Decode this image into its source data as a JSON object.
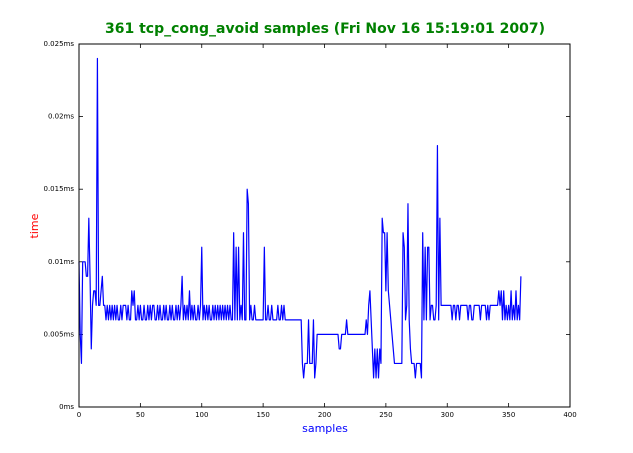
{
  "chart_data": {
    "type": "line",
    "title": "361 tcp_cong_avoid samples (Fri Nov 16 15:19:01 2007)",
    "xlabel": "samples",
    "ylabel": "time",
    "color": "#0000ff",
    "xlim": [
      0,
      400
    ],
    "xticks": [
      0,
      50,
      100,
      150,
      200,
      250,
      300,
      350,
      400
    ],
    "ylim": [
      0,
      0.025
    ],
    "yticks": [
      {
        "value": 0,
        "label": "0ms"
      },
      {
        "value": 0.005,
        "label": "0.005ms"
      },
      {
        "value": 0.01,
        "label": "0.01ms"
      },
      {
        "value": 0.015,
        "label": "0.015ms"
      },
      {
        "value": 0.02,
        "label": "0.02ms"
      },
      {
        "value": 0.025,
        "label": "0.025ms"
      }
    ],
    "x": [
      0,
      1,
      2,
      3,
      4,
      5,
      6,
      7,
      8,
      9,
      10,
      11,
      12,
      13,
      14,
      15,
      16,
      17,
      18,
      19,
      20,
      21,
      22,
      23,
      24,
      25,
      26,
      27,
      28,
      29,
      30,
      31,
      32,
      33,
      34,
      35,
      36,
      37,
      38,
      39,
      40,
      41,
      42,
      43,
      44,
      45,
      46,
      47,
      48,
      49,
      50,
      51,
      52,
      53,
      54,
      55,
      56,
      57,
      58,
      59,
      60,
      61,
      62,
      63,
      64,
      65,
      66,
      67,
      68,
      69,
      70,
      71,
      72,
      73,
      74,
      75,
      76,
      77,
      78,
      79,
      80,
      81,
      82,
      83,
      84,
      85,
      86,
      87,
      88,
      89,
      90,
      91,
      92,
      93,
      94,
      95,
      96,
      97,
      98,
      99,
      100,
      101,
      102,
      103,
      104,
      105,
      106,
      107,
      108,
      109,
      110,
      111,
      112,
      113,
      114,
      115,
      116,
      117,
      118,
      119,
      120,
      121,
      122,
      123,
      124,
      125,
      126,
      127,
      128,
      129,
      130,
      131,
      132,
      133,
      134,
      135,
      136,
      137,
      138,
      139,
      140,
      141,
      142,
      143,
      144,
      145,
      146,
      147,
      148,
      149,
      150,
      151,
      152,
      153,
      154,
      155,
      156,
      157,
      158,
      159,
      160,
      161,
      162,
      163,
      164,
      165,
      166,
      167,
      168,
      169,
      170,
      171,
      172,
      173,
      174,
      175,
      176,
      177,
      178,
      179,
      180,
      181,
      182,
      183,
      184,
      185,
      186,
      187,
      188,
      189,
      190,
      191,
      192,
      193,
      194,
      195,
      196,
      197,
      198,
      199,
      200,
      201,
      202,
      203,
      204,
      205,
      206,
      207,
      208,
      209,
      210,
      211,
      212,
      213,
      214,
      215,
      216,
      217,
      218,
      219,
      220,
      221,
      222,
      223,
      224,
      225,
      226,
      227,
      228,
      229,
      230,
      231,
      232,
      233,
      234,
      235,
      236,
      237,
      238,
      239,
      240,
      241,
      242,
      243,
      244,
      245,
      246,
      247,
      248,
      249,
      250,
      251,
      252,
      253,
      254,
      255,
      256,
      257,
      258,
      259,
      260,
      261,
      262,
      263,
      264,
      265,
      266,
      267,
      268,
      269,
      270,
      271,
      272,
      273,
      274,
      275,
      276,
      277,
      278,
      279,
      280,
      281,
      282,
      283,
      284,
      285,
      286,
      287,
      288,
      289,
      290,
      291,
      292,
      293,
      294,
      295,
      296,
      297,
      298,
      299,
      300,
      301,
      302,
      303,
      304,
      305,
      306,
      307,
      308,
      309,
      310,
      311,
      312,
      313,
      314,
      315,
      316,
      317,
      318,
      319,
      320,
      321,
      322,
      323,
      324,
      325,
      326,
      327,
      328,
      329,
      330,
      331,
      332,
      333,
      334,
      335,
      336,
      337,
      338,
      339,
      340,
      341,
      342,
      343,
      344,
      345,
      346,
      347,
      348,
      349,
      350,
      351,
      352,
      353,
      354,
      355,
      356,
      357,
      358,
      359,
      360
    ],
    "values": [
      0.01,
      0.005,
      0.003,
      0.01,
      0.01,
      0.01,
      0.009,
      0.009,
      0.013,
      0.009,
      0.004,
      0.007,
      0.008,
      0.008,
      0.007,
      0.024,
      0.007,
      0.007,
      0.008,
      0.009,
      0.007,
      0.007,
      0.006,
      0.007,
      0.006,
      0.007,
      0.006,
      0.007,
      0.006,
      0.007,
      0.006,
      0.007,
      0.006,
      0.006,
      0.007,
      0.006,
      0.007,
      0.007,
      0.007,
      0.006,
      0.007,
      0.006,
      0.006,
      0.008,
      0.007,
      0.008,
      0.006,
      0.006,
      0.007,
      0.006,
      0.007,
      0.006,
      0.006,
      0.007,
      0.006,
      0.006,
      0.007,
      0.006,
      0.007,
      0.006,
      0.007,
      0.007,
      0.006,
      0.006,
      0.007,
      0.006,
      0.007,
      0.006,
      0.006,
      0.007,
      0.006,
      0.007,
      0.006,
      0.006,
      0.007,
      0.006,
      0.007,
      0.006,
      0.006,
      0.007,
      0.006,
      0.007,
      0.006,
      0.007,
      0.009,
      0.006,
      0.007,
      0.006,
      0.007,
      0.006,
      0.008,
      0.006,
      0.007,
      0.006,
      0.007,
      0.006,
      0.006,
      0.007,
      0.006,
      0.007,
      0.011,
      0.006,
      0.007,
      0.006,
      0.007,
      0.006,
      0.007,
      0.006,
      0.006,
      0.007,
      0.006,
      0.007,
      0.006,
      0.007,
      0.006,
      0.007,
      0.006,
      0.007,
      0.006,
      0.007,
      0.006,
      0.007,
      0.006,
      0.007,
      0.006,
      0.006,
      0.012,
      0.006,
      0.011,
      0.006,
      0.011,
      0.006,
      0.007,
      0.006,
      0.012,
      0.006,
      0.006,
      0.015,
      0.014,
      0.006,
      0.007,
      0.006,
      0.006,
      0.007,
      0.006,
      0.006,
      0.006,
      0.006,
      0.006,
      0.006,
      0.006,
      0.011,
      0.006,
      0.006,
      0.007,
      0.006,
      0.006,
      0.007,
      0.006,
      0.006,
      0.006,
      0.006,
      0.007,
      0.006,
      0.006,
      0.007,
      0.006,
      0.007,
      0.006,
      0.006,
      0.006,
      0.006,
      0.006,
      0.006,
      0.006,
      0.006,
      0.006,
      0.006,
      0.006,
      0.006,
      0.006,
      0.006,
      0.003,
      0.002,
      0.003,
      0.003,
      0.003,
      0.006,
      0.003,
      0.003,
      0.003,
      0.006,
      0.002,
      0.003,
      0.005,
      0.005,
      0.005,
      0.005,
      0.005,
      0.005,
      0.005,
      0.005,
      0.005,
      0.005,
      0.005,
      0.005,
      0.005,
      0.005,
      0.005,
      0.005,
      0.005,
      0.005,
      0.004,
      0.004,
      0.005,
      0.005,
      0.005,
      0.005,
      0.006,
      0.005,
      0.005,
      0.005,
      0.005,
      0.005,
      0.005,
      0.005,
      0.005,
      0.005,
      0.005,
      0.005,
      0.005,
      0.005,
      0.005,
      0.005,
      0.006,
      0.005,
      0.007,
      0.008,
      0.006,
      0.004,
      0.002,
      0.004,
      0.002,
      0.004,
      0.002,
      0.004,
      0.003,
      0.013,
      0.012,
      0.012,
      0.008,
      0.012,
      0.008,
      0.007,
      0.006,
      0.005,
      0.004,
      0.003,
      0.003,
      0.003,
      0.003,
      0.003,
      0.003,
      0.003,
      0.012,
      0.011,
      0.006,
      0.007,
      0.014,
      0.006,
      0.004,
      0.003,
      0.003,
      0.003,
      0.002,
      0.003,
      0.003,
      0.003,
      0.003,
      0.002,
      0.012,
      0.006,
      0.011,
      0.006,
      0.011,
      0.011,
      0.006,
      0.007,
      0.007,
      0.006,
      0.006,
      0.007,
      0.018,
      0.006,
      0.013,
      0.007,
      0.007,
      0.007,
      0.007,
      0.007,
      0.007,
      0.007,
      0.007,
      0.007,
      0.006,
      0.007,
      0.007,
      0.006,
      0.007,
      0.007,
      0.006,
      0.007,
      0.007,
      0.007,
      0.007,
      0.007,
      0.007,
      0.006,
      0.007,
      0.007,
      0.006,
      0.006,
      0.007,
      0.007,
      0.007,
      0.007,
      0.007,
      0.006,
      0.007,
      0.007,
      0.007,
      0.007,
      0.006,
      0.007,
      0.006,
      0.007,
      0.007,
      0.007,
      0.007,
      0.007,
      0.007,
      0.007,
      0.008,
      0.007,
      0.008,
      0.006,
      0.008,
      0.006,
      0.007,
      0.006,
      0.007,
      0.006,
      0.008,
      0.006,
      0.007,
      0.006,
      0.008,
      0.006,
      0.007,
      0.006,
      0.009
    ]
  }
}
